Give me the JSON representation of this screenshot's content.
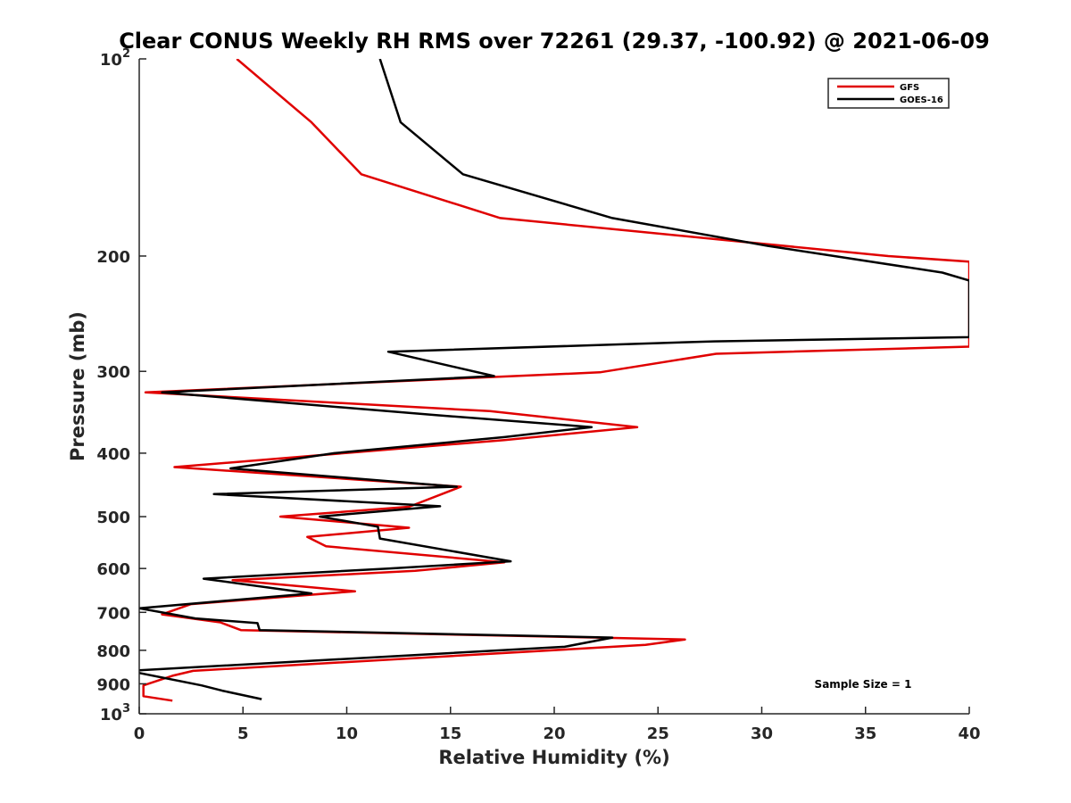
{
  "chart_data": {
    "type": "line",
    "title": "Clear CONUS Weekly RH RMS over 72261 (29.37, -100.92) @ 2021-06-09",
    "xlabel": "Relative Humidity (%)",
    "ylabel": "Pressure (mb)",
    "xlim": [
      0,
      40
    ],
    "ylim": [
      100,
      1000
    ],
    "yscale": "log",
    "y_reversed": true,
    "x_ticks": [
      "0",
      "5",
      "10",
      "15",
      "20",
      "25",
      "30",
      "35",
      "40"
    ],
    "y_ticks": [
      {
        "value": 100,
        "base": "10",
        "exp": "2"
      },
      {
        "value": 200,
        "label": "200"
      },
      {
        "value": 300,
        "label": "300"
      },
      {
        "value": 400,
        "label": "400"
      },
      {
        "value": 500,
        "label": "500"
      },
      {
        "value": 600,
        "label": "600"
      },
      {
        "value": 700,
        "label": "700"
      },
      {
        "value": 800,
        "label": "800"
      },
      {
        "value": 900,
        "label": "900"
      },
      {
        "value": 1000,
        "base": "10",
        "exp": "3"
      }
    ],
    "grid": false,
    "legend_position": "top-right",
    "annotation": "Sample Size = 1",
    "series": [
      {
        "name": "GFS",
        "color": "#e00000",
        "points": [
          [
            4.7,
            100
          ],
          [
            8.3,
            125
          ],
          [
            10.7,
            150
          ],
          [
            17.4,
            175
          ],
          [
            36.1,
            200
          ],
          [
            40,
            204
          ],
          [
            40,
            275
          ],
          [
            27.8,
            282
          ],
          [
            22.2,
            301
          ],
          [
            0.3,
            323
          ],
          [
            16.9,
            345
          ],
          [
            24.0,
            365
          ],
          [
            17.6,
            382
          ],
          [
            1.7,
            420
          ],
          [
            15.5,
            450
          ],
          [
            13.0,
            483
          ],
          [
            6.8,
            500
          ],
          [
            13.0,
            520
          ],
          [
            8.1,
            537
          ],
          [
            9.0,
            555
          ],
          [
            17.6,
            587
          ],
          [
            13.3,
            605
          ],
          [
            4.5,
            625
          ],
          [
            10.4,
            650
          ],
          [
            2.5,
            680
          ],
          [
            1.1,
            705
          ],
          [
            3.9,
            725
          ],
          [
            4.9,
            745
          ],
          [
            26.3,
            770
          ],
          [
            24.4,
            785
          ],
          [
            2.6,
            860
          ],
          [
            1.6,
            875
          ],
          [
            0.2,
            905
          ],
          [
            0.2,
            940
          ],
          [
            1.6,
            955
          ]
        ]
      },
      {
        "name": "GOES-16",
        "color": "#000000",
        "points": [
          [
            11.6,
            100
          ],
          [
            12.6,
            125
          ],
          [
            15.6,
            150
          ],
          [
            22.8,
            175
          ],
          [
            30.3,
            193
          ],
          [
            38.7,
            212
          ],
          [
            40,
            218
          ],
          [
            40,
            266
          ],
          [
            27.7,
            270
          ],
          [
            12.0,
            280
          ],
          [
            17.1,
            305
          ],
          [
            1.1,
            323
          ],
          [
            14.3,
            350
          ],
          [
            21.8,
            365
          ],
          [
            17.6,
            378
          ],
          [
            9.4,
            400
          ],
          [
            4.4,
            422
          ],
          [
            15.3,
            450
          ],
          [
            3.6,
            462
          ],
          [
            14.5,
            482
          ],
          [
            8.7,
            500
          ],
          [
            11.5,
            518
          ],
          [
            11.6,
            540
          ],
          [
            17.9,
            585
          ],
          [
            12.0,
            600
          ],
          [
            3.1,
            622
          ],
          [
            8.3,
            655
          ],
          [
            0,
            690
          ],
          [
            2.7,
            715
          ],
          [
            5.7,
            727
          ],
          [
            5.8,
            745
          ],
          [
            22.8,
            765
          ],
          [
            20.5,
            790
          ],
          [
            -0.5,
            860
          ],
          [
            3.0,
            905
          ],
          [
            4.0,
            922
          ],
          [
            5.9,
            950
          ]
        ]
      }
    ]
  }
}
